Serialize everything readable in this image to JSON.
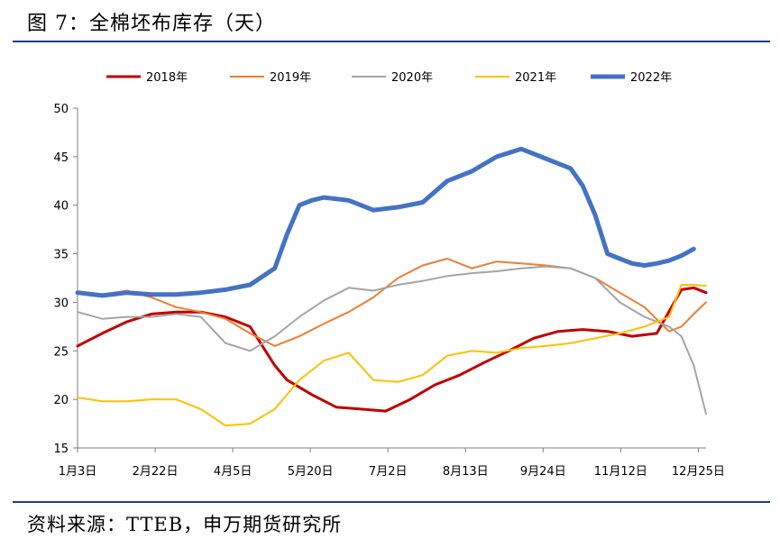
{
  "figure": {
    "title": "图 7：全棉坯布库存（天）",
    "source": "资料来源：TTEB，申万期货研究所"
  },
  "chart_data": {
    "type": "line",
    "title": "全棉坯布库存（天）",
    "xlabel": "",
    "ylabel": "",
    "ylim": [
      15,
      50
    ],
    "yticks": [
      15,
      20,
      25,
      30,
      35,
      40,
      45,
      50
    ],
    "xticks": [
      "1月3日",
      "2月22日",
      "4月5日",
      "5月20日",
      "7月2日",
      "8月13日",
      "9月24日",
      "11月12日",
      "12月25日"
    ],
    "xlim": [
      0,
      51
    ],
    "x_unit": "week",
    "grid": false,
    "legend_position": "top",
    "series": [
      {
        "name": "2018年",
        "color": "#c00000",
        "width": 3,
        "x": [
          0,
          2,
          4,
          6,
          8,
          10,
          12,
          14,
          16,
          17,
          19,
          21,
          23,
          25,
          27,
          29,
          31,
          33,
          35,
          37,
          39,
          41,
          43,
          45,
          47,
          49,
          50,
          51
        ],
        "y": [
          25.5,
          26.8,
          28.0,
          28.8,
          29.0,
          29.0,
          28.5,
          27.5,
          23.5,
          22.0,
          20.5,
          19.2,
          19.0,
          18.8,
          20.0,
          21.5,
          22.5,
          23.8,
          25.0,
          26.3,
          27.0,
          27.2,
          27.0,
          26.5,
          26.8,
          31.3,
          31.5,
          31.0
        ]
      },
      {
        "name": "2019年",
        "color": "#ed7d31",
        "width": 2,
        "x": [
          0,
          2,
          4,
          6,
          8,
          10,
          12,
          14,
          16,
          18,
          20,
          22,
          24,
          26,
          28,
          30,
          32,
          34,
          36,
          38,
          40,
          42,
          44,
          46,
          48,
          49,
          50,
          51
        ],
        "y": [
          31.0,
          30.8,
          31.2,
          30.5,
          29.5,
          29.0,
          28.3,
          26.8,
          25.5,
          26.5,
          27.8,
          29.0,
          30.5,
          32.5,
          33.8,
          34.5,
          33.5,
          34.2,
          34.0,
          33.8,
          33.5,
          32.5,
          31.0,
          29.5,
          27.0,
          27.5,
          28.8,
          30.0
        ]
      },
      {
        "name": "2020年",
        "color": "#a5a5a5",
        "width": 2,
        "x": [
          0,
          2,
          4,
          6,
          8,
          10,
          12,
          14,
          16,
          18,
          20,
          22,
          24,
          26,
          28,
          30,
          32,
          34,
          36,
          38,
          40,
          42,
          44,
          46,
          48,
          49,
          50,
          51
        ],
        "y": [
          29.0,
          28.3,
          28.5,
          28.5,
          28.8,
          28.5,
          25.8,
          25.0,
          26.5,
          28.5,
          30.2,
          31.5,
          31.2,
          31.8,
          32.2,
          32.7,
          33.0,
          33.2,
          33.5,
          33.7,
          33.5,
          32.5,
          30.0,
          28.5,
          27.5,
          26.5,
          23.5,
          18.5
        ]
      },
      {
        "name": "2021年",
        "color": "#ffc000",
        "width": 2,
        "x": [
          0,
          2,
          4,
          6,
          8,
          10,
          12,
          14,
          16,
          18,
          20,
          22,
          24,
          26,
          28,
          30,
          32,
          34,
          36,
          38,
          40,
          42,
          44,
          46,
          48,
          49,
          50,
          51
        ],
        "y": [
          20.2,
          19.8,
          19.8,
          20.0,
          20.0,
          19.0,
          17.3,
          17.5,
          19.0,
          22.0,
          24.0,
          24.8,
          22.0,
          21.8,
          22.5,
          24.5,
          25.0,
          24.8,
          25.3,
          25.5,
          25.8,
          26.3,
          26.8,
          27.5,
          28.5,
          31.8,
          31.8,
          31.7
        ]
      },
      {
        "name": "2022年",
        "color": "#4472c4",
        "width": 5,
        "x": [
          0,
          2,
          4,
          6,
          8,
          10,
          12,
          14,
          16,
          17,
          18,
          19,
          20,
          22,
          24,
          26,
          28,
          30,
          32,
          34,
          36,
          38,
          39,
          40,
          41,
          42,
          43,
          44,
          45,
          46,
          47,
          48,
          49,
          50
        ],
        "y": [
          31.0,
          30.7,
          31.0,
          30.8,
          30.8,
          31.0,
          31.3,
          31.8,
          33.5,
          37.0,
          40.0,
          40.5,
          40.8,
          40.5,
          39.5,
          39.8,
          40.3,
          42.5,
          43.5,
          45.0,
          45.8,
          44.8,
          44.3,
          43.8,
          42.0,
          39.0,
          35.0,
          34.5,
          34.0,
          33.8,
          34.0,
          34.3,
          34.8,
          35.5
        ]
      }
    ]
  }
}
